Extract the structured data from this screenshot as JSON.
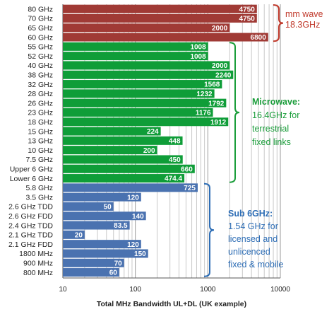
{
  "chart_data": {
    "type": "bar",
    "orientation": "horizontal",
    "xscale": "log",
    "xlim": [
      10,
      10000
    ],
    "xticks": [
      "10",
      "100",
      "1000",
      "10000"
    ],
    "xlabel": "Total MHz Bandwidth UL+DL (UK example)",
    "grid": "vertical minor and major gridlines",
    "categories": [
      "80 GHz",
      "70 GHz",
      "65 GHz",
      "60 GHz",
      "55 GHz",
      "52 GHz",
      "40 GHz",
      "38 GHz",
      "32 GHz",
      "28 GHz",
      "26 GHz",
      "23 GHz",
      "18 GHz",
      "15 GHz",
      "13 GHz",
      "10 GHz",
      "7.5 GHz",
      "Upper 6 GHz",
      "Lower 6 GHz",
      "5.8 GHz",
      "3.5 GHz",
      "2.6 GHz TDD",
      "2.6 GHz FDD",
      "2.4 GHz TDD",
      "2.1 GHz TDD",
      "2.1 GHz FDD",
      "1800 MHz",
      "900 MHz",
      "800 MHz"
    ],
    "values": [
      4750,
      4750,
      2000,
      6800,
      1008,
      1008,
      2000,
      2240,
      1568,
      1232,
      1792,
      1176,
      1912,
      224,
      448,
      200,
      450,
      660,
      474.4,
      725,
      120,
      50,
      140,
      83.5,
      20,
      120,
      150,
      70,
      60
    ],
    "value_labels": [
      "4750",
      "4750",
      "2000",
      "6800",
      "1008",
      "1008",
      "2000",
      "2240",
      "1568",
      "1232",
      "1792",
      "1176",
      "1912",
      "224",
      "448",
      "200",
      "450",
      "660",
      "474.4",
      "725",
      "120",
      "50",
      "140",
      "83.5",
      "20",
      "120",
      "150",
      "70",
      "60"
    ],
    "groups": [
      {
        "name": "mm wave",
        "start": 0,
        "end": 3,
        "color": "#a03a35",
        "annotation": [
          "mm wave",
          "18.3GHz"
        ]
      },
      {
        "name": "Microwave",
        "start": 4,
        "end": 18,
        "color": "#0f9d38",
        "annotation": [
          "Microwave:",
          "16.4GHz for",
          "terrestrial",
          "fixed links"
        ]
      },
      {
        "name": "Sub 6GHz",
        "start": 19,
        "end": 28,
        "color": "#4a72b0",
        "annotation": [
          "Sub 6GHz:",
          "1.54 GHz for",
          "licensed and",
          "unlicenced",
          "fixed & mobile"
        ]
      }
    ],
    "annotation_colors": {
      "mm wave": "#c0392b",
      "Microwave": "#1a9d3a",
      "Sub 6GHz": "#2d6db5"
    }
  }
}
